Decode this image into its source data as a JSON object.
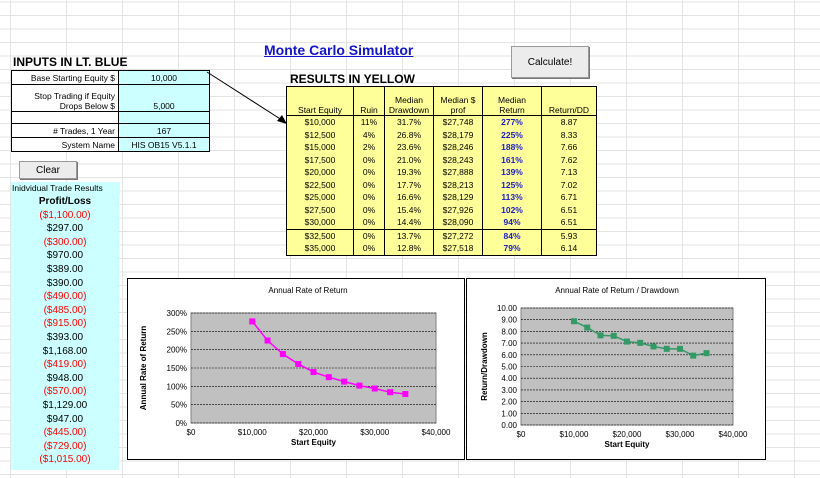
{
  "title": "Monte Carlo Simulator",
  "calculate_label": "Calculate!",
  "inputs": {
    "title": "INPUTS IN LT. BLUE",
    "rows": [
      {
        "label": "Base Starting Equity $",
        "value": "10,000"
      },
      {
        "label": "Stop Trading if Equity Drops Below $",
        "value": "5,000"
      },
      {
        "label": "# Trades, 1 Year",
        "value": "167"
      },
      {
        "label": "System Name",
        "value": "HIS OB15 V5.1.1"
      }
    ]
  },
  "clear_label": "Clear",
  "trades": {
    "header": "Inidvidual Trade Results",
    "column": "Profit/Loss",
    "values": [
      "($1,100.00)",
      "$297.00",
      "($300.00)",
      "$970.00",
      "$389.00",
      "$390.00",
      "($490.00)",
      "($485.00)",
      "($915.00)",
      "$393.00",
      "$1,168.00",
      "($419.00)",
      "$948.00",
      "($570.00)",
      "$1,129.00",
      "$947.00",
      "($445.00)",
      "($729.00)",
      "($1,015.00)"
    ]
  },
  "results": {
    "title": "RESULTS IN YELLOW",
    "headers": [
      "Start Equity",
      "Ruin",
      "Median Drawdown",
      "Median $ prof",
      "Median Return",
      "Return/DD"
    ],
    "rows": [
      [
        "$10,000",
        "11%",
        "31.7%",
        "$27,748",
        "277%",
        "8.87"
      ],
      [
        "$12,500",
        "4%",
        "26.8%",
        "$28,179",
        "225%",
        "8.33"
      ],
      [
        "$15,000",
        "2%",
        "23.6%",
        "$28,246",
        "188%",
        "7.66"
      ],
      [
        "$17,500",
        "0%",
        "21.0%",
        "$28,243",
        "161%",
        "7.62"
      ],
      [
        "$20,000",
        "0%",
        "19.3%",
        "$27,888",
        "139%",
        "7.13"
      ],
      [
        "$22,500",
        "0%",
        "17.7%",
        "$28,213",
        "125%",
        "7.02"
      ],
      [
        "$25,000",
        "0%",
        "16.6%",
        "$28,129",
        "113%",
        "6.71"
      ],
      [
        "$27,500",
        "0%",
        "15.4%",
        "$27,926",
        "102%",
        "6.51"
      ],
      [
        "$30,000",
        "0%",
        "14.4%",
        "$28,090",
        "94%",
        "6.51"
      ],
      [
        "$32,500",
        "0%",
        "13.7%",
        "$27,272",
        "84%",
        "5.93"
      ],
      [
        "$35,000",
        "0%",
        "12.8%",
        "$27,518",
        "79%",
        "6.14"
      ]
    ]
  },
  "chart_data": [
    {
      "type": "line",
      "title": "Annual Rate of Return",
      "xlabel": "Start Equity",
      "ylabel": "Annual Rate of Return",
      "x": [
        10000,
        12500,
        15000,
        17500,
        20000,
        22500,
        25000,
        27500,
        30000,
        32500,
        35000
      ],
      "values": [
        277,
        225,
        188,
        161,
        139,
        125,
        113,
        102,
        94,
        84,
        79
      ],
      "xlim": [
        0,
        40000
      ],
      "ylim": [
        0,
        300
      ],
      "xticks": [
        "$0",
        "$10,000",
        "$20,000",
        "$30,000",
        "$40,000"
      ],
      "yticks": [
        "0%",
        "50%",
        "100%",
        "150%",
        "200%",
        "250%",
        "300%"
      ],
      "color": "#ff00ff",
      "plot_bg": "#c0c0c0",
      "grid": true
    },
    {
      "type": "line",
      "title": "Annual Rate of Return / Drawdown",
      "xlabel": "Start Equity",
      "ylabel": "Return/Drawdown",
      "x": [
        10000,
        12500,
        15000,
        17500,
        20000,
        22500,
        25000,
        27500,
        30000,
        32500,
        35000
      ],
      "values": [
        8.87,
        8.33,
        7.66,
        7.62,
        7.13,
        7.02,
        6.71,
        6.51,
        6.51,
        5.93,
        6.14
      ],
      "xlim": [
        0,
        40000
      ],
      "ylim": [
        0,
        10
      ],
      "xticks": [
        "$0",
        "$10,000",
        "$20,000",
        "$30,000",
        "$40,000"
      ],
      "yticks": [
        "0.00",
        "1.00",
        "2.00",
        "3.00",
        "4.00",
        "5.00",
        "6.00",
        "7.00",
        "8.00",
        "9.00",
        "10.00"
      ],
      "color": "#339966",
      "plot_bg": "#c0c0c0",
      "grid": true
    }
  ]
}
